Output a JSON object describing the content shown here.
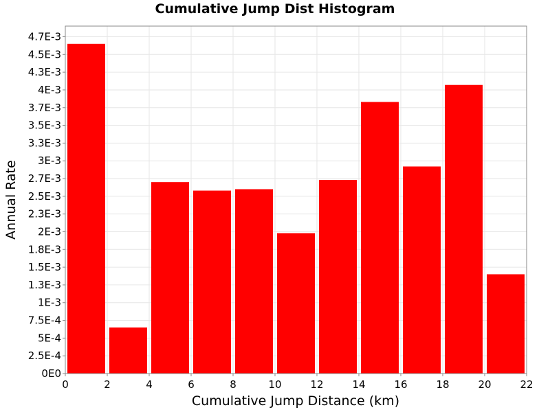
{
  "chart_data": {
    "type": "bar",
    "title": "Cumulative Jump Dist Histogram",
    "xlabel": "Cumulative Jump Distance (km)",
    "ylabel": "Annual Rate",
    "xlim": [
      0,
      22
    ],
    "ylim": [
      0,
      0.0049
    ],
    "grid": true,
    "bar_color": "#ff0000",
    "bin_width": 2,
    "x": [
      1,
      3,
      5,
      7,
      9,
      11,
      13,
      15,
      17,
      19,
      21
    ],
    "values": [
      0.00465,
      0.00065,
      0.0027,
      0.00258,
      0.0026,
      0.00198,
      0.00273,
      0.00383,
      0.00292,
      0.00407,
      0.0014
    ],
    "x_ticks": [
      0,
      2,
      4,
      6,
      8,
      10,
      12,
      14,
      16,
      18,
      20,
      22
    ],
    "x_tick_labels": [
      "0",
      "2",
      "4",
      "6",
      "8",
      "10",
      "12",
      "14",
      "16",
      "18",
      "20",
      "22"
    ],
    "y_ticks": [
      0,
      0.00025,
      0.0005,
      0.00075,
      0.001,
      0.00125,
      0.0015,
      0.00175,
      0.002,
      0.00225,
      0.0025,
      0.00275,
      0.003,
      0.00325,
      0.0035,
      0.00375,
      0.004,
      0.00425,
      0.0045,
      0.00475
    ],
    "y_tick_labels": [
      "0E0",
      "2.5E-4",
      "5E-4",
      "7.5E-4",
      "1E-3",
      "1.3E-3",
      "1.5E-3",
      "1.8E-3",
      "2E-3",
      "2.3E-3",
      "2.5E-3",
      "2.7E-3",
      "3E-3",
      "3.3E-3",
      "3.5E-3",
      "3.7E-3",
      "4E-3",
      "4.3E-3",
      "4.5E-3",
      "4.7E-3"
    ]
  }
}
